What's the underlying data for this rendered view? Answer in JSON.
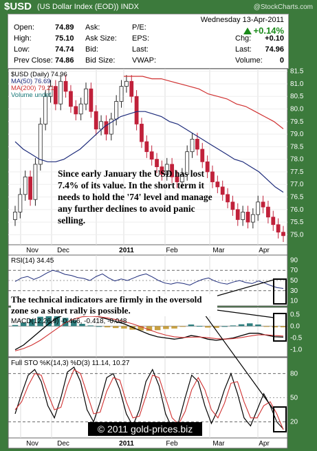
{
  "header": {
    "symbol": "$USD",
    "name": "(US Dollar Index (EOD))",
    "exchange": "INDX",
    "watermark": "@StockCharts.com"
  },
  "quote": {
    "date": "Wednesday  13-Apr-2011",
    "change_pct": "+0.14%",
    "left": [
      {
        "label": "Open:",
        "value": "74.89"
      },
      {
        "label": "High:",
        "value": "75.10"
      },
      {
        "label": "Low:",
        "value": "74.74"
      },
      {
        "label": "Prev Close:",
        "value": "74.86"
      }
    ],
    "mid": [
      {
        "label": "Ask:",
        "value": ""
      },
      {
        "label": "Ask Size:",
        "value": ""
      },
      {
        "label": "Bid:",
        "value": ""
      },
      {
        "label": "Bid Size:",
        "value": ""
      }
    ],
    "mid2": [
      {
        "label": "P/E:",
        "value": ""
      },
      {
        "label": "EPS:",
        "value": ""
      },
      {
        "label": "Last:",
        "value": ""
      },
      {
        "label": "VWAP:",
        "value": ""
      }
    ],
    "right": [
      {
        "label": "Chg:",
        "value": "+0.10"
      },
      {
        "label": "Last:",
        "value": "74.96"
      },
      {
        "label": "Volume:",
        "value": "0"
      }
    ]
  },
  "chart_data": [
    {
      "type": "candlestick",
      "panel": "price",
      "legend": [
        "$USD (Daily) 74.96",
        "MA(50) 76.69",
        "MA(200) 79.21",
        "Volume undef"
      ],
      "ylim": [
        74.6,
        81.6
      ],
      "y_ticks": [
        "75.0",
        "75.5",
        "76.0",
        "76.5",
        "77.0",
        "77.5",
        "78.0",
        "78.5",
        "79.0",
        "79.5",
        "80.0",
        "80.5",
        "81.0",
        "81.5"
      ],
      "x_labels": [
        "Nov",
        "Dec",
        "2011",
        "Feb",
        "Mar",
        "Apr"
      ],
      "close": [
        75.9,
        76.6,
        77.3,
        76.4,
        77.8,
        79.4,
        80.5,
        80.9,
        80.2,
        81.1,
        80.7,
        80.1,
        79.8,
        80.2,
        80.8,
        79.9,
        79.2,
        79.5,
        79.0,
        79.6,
        80.3,
        80.9,
        81.1,
        80.5,
        79.4,
        78.7,
        78.3,
        78.0,
        77.7,
        77.4,
        77.8,
        77.3,
        77.1,
        77.4,
        78.3,
        78.8,
        78.4,
        77.9,
        77.5,
        77.1,
        76.9,
        76.6,
        76.3,
        76.0,
        75.6,
        75.9,
        75.5,
        75.8,
        76.3,
        76.1,
        75.7,
        75.4,
        75.1,
        74.96
      ],
      "ma50": [
        78.7,
        78.4,
        78.2,
        78.0,
        77.9,
        77.9,
        78.0,
        78.2,
        78.4,
        78.7,
        79.0,
        79.3,
        79.5,
        79.7,
        79.8,
        79.9,
        79.9,
        79.8,
        79.7,
        79.5,
        79.4,
        79.2,
        79.0,
        78.8,
        78.6,
        78.4,
        78.2,
        78.0,
        77.9,
        77.7,
        77.5,
        77.2,
        76.9,
        76.69
      ],
      "ma200": [
        81.3,
        81.3,
        81.3,
        81.2,
        81.2,
        81.1,
        81.0,
        80.9,
        80.8,
        80.6,
        80.5,
        80.4,
        80.2,
        80.1,
        79.9,
        79.7,
        79.5,
        79.21
      ],
      "annotation": "Since early January the USD has lost 7.4% of its value. In the short term it needs to hold the '74' level and manage any further declines to avoid panic selling."
    },
    {
      "type": "line",
      "panel": "rsi",
      "legend": "RSI(14) 34.45",
      "ylim": [
        0,
        100
      ],
      "y_ticks": [
        "10",
        "30",
        "50",
        "70",
        "90"
      ],
      "values": [
        48,
        55,
        58,
        52,
        57,
        64,
        70,
        67,
        62,
        60,
        56,
        54,
        50,
        58,
        63,
        55,
        49,
        53,
        50,
        55,
        60,
        63,
        57,
        50,
        45,
        43,
        46,
        44,
        41,
        47,
        52,
        55,
        49,
        45,
        43,
        47,
        50,
        46,
        44,
        49,
        45,
        40,
        36,
        34.45
      ]
    },
    {
      "type": "annotation",
      "text": "The technical indicators are firmly in the oversold zone so a short rally is possible."
    },
    {
      "type": "macd",
      "panel": "macd",
      "legend": "MACD(12,26,9) -0.466, -0.418, -0.048",
      "ylim": [
        -1.3,
        0.8
      ],
      "y_ticks": [
        "0.5",
        "0.0",
        "-0.5",
        "-1.0"
      ],
      "macd": [
        -1.0,
        -0.8,
        -0.5,
        -0.2,
        0.1,
        0.35,
        0.5,
        0.55,
        0.5,
        0.45,
        0.4,
        0.3,
        0.2,
        0.1,
        -0.05,
        -0.2,
        -0.35,
        -0.45,
        -0.5,
        -0.55,
        -0.5,
        -0.4,
        -0.45,
        -0.55,
        -0.6,
        -0.55,
        -0.5,
        -0.4,
        -0.3,
        -0.3,
        -0.38,
        -0.45,
        -0.466
      ],
      "signal": [
        -1.05,
        -0.95,
        -0.8,
        -0.6,
        -0.35,
        -0.1,
        0.15,
        0.3,
        0.4,
        0.42,
        0.4,
        0.35,
        0.28,
        0.2,
        0.1,
        -0.02,
        -0.15,
        -0.28,
        -0.38,
        -0.45,
        -0.48,
        -0.47,
        -0.46,
        -0.49,
        -0.53,
        -0.55,
        -0.53,
        -0.48,
        -0.42,
        -0.37,
        -0.37,
        -0.4,
        -0.418
      ],
      "histogram": [
        0.05,
        0.15,
        0.3,
        0.4,
        0.45,
        0.45,
        0.35,
        0.25,
        0.1,
        0.03,
        0.0,
        -0.05,
        -0.08,
        -0.1,
        -0.15,
        -0.18,
        -0.2,
        -0.17,
        -0.12,
        -0.1,
        -0.02,
        0.07,
        0.01,
        -0.06,
        -0.07,
        0.0,
        0.03,
        0.08,
        0.12,
        0.07,
        -0.01,
        -0.05,
        -0.048
      ]
    },
    {
      "type": "line",
      "panel": "stochastic",
      "legend": "Full STO %K(14,3) %D(3) 11.14, 10.27",
      "ylim": [
        0,
        100
      ],
      "y_ticks": [
        "20",
        "50",
        "80"
      ],
      "k": [
        30,
        55,
        78,
        85,
        70,
        40,
        25,
        50,
        82,
        88,
        70,
        35,
        20,
        45,
        75,
        80,
        60,
        30,
        15,
        35,
        70,
        85,
        65,
        30,
        12,
        20,
        50,
        78,
        70,
        40,
        18,
        35,
        60,
        80,
        55,
        25,
        15,
        35,
        55,
        40,
        20,
        11.14
      ],
      "d": [
        35,
        45,
        65,
        80,
        78,
        55,
        35,
        38,
        65,
        85,
        80,
        55,
        30,
        32,
        58,
        75,
        72,
        45,
        25,
        27,
        52,
        78,
        75,
        50,
        25,
        17,
        33,
        60,
        75,
        60,
        35,
        25,
        43,
        68,
        70,
        45,
        25,
        25,
        40,
        45,
        30,
        10.27
      ],
      "watermark": "© 2011 gold-prices.biz"
    }
  ]
}
